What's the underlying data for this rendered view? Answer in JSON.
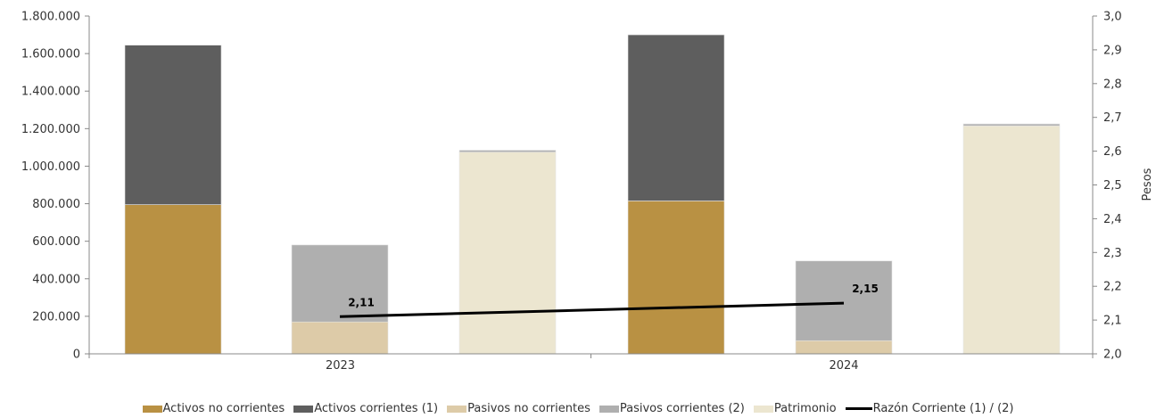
{
  "chart_data": {
    "type": "bar",
    "categories": [
      "2023",
      "2024"
    ],
    "left_axis": {
      "ylim": [
        0,
        1800000
      ],
      "ticks": [
        "0",
        "200.000",
        "400.000",
        "600.000",
        "800.000",
        "1.000.000",
        "1.200.000",
        "1.400.000",
        "1.600.000",
        "1.800.000"
      ]
    },
    "right_axis": {
      "label": "Pesos",
      "ylim": [
        2.0,
        3.0
      ],
      "ticks": [
        "2,0",
        "2,1",
        "2,2",
        "2,3",
        "2,4",
        "2,5",
        "2,6",
        "2,7",
        "2,8",
        "2,9",
        "3,0"
      ]
    },
    "grid": false,
    "legend_position": "bottom",
    "bar_groups": [
      {
        "category": "2023",
        "stacks": [
          [
            {
              "series": "Activos no corrientes",
              "value": 795000
            },
            {
              "series": "Activos corrientes (1)",
              "value": 850000
            }
          ],
          [
            {
              "series": "Pasivos no corrientes",
              "value": 170000
            },
            {
              "series": "Pasivos corrientes (2)",
              "value": 410000
            }
          ],
          [
            {
              "series": "Patrimonio",
              "value": 1075000
            },
            {
              "series": "Pasivos corrientes (2)",
              "value": 10000
            }
          ]
        ]
      },
      {
        "category": "2024",
        "stacks": [
          [
            {
              "series": "Activos no corrientes",
              "value": 815000
            },
            {
              "series": "Activos corrientes (1)",
              "value": 885000
            }
          ],
          [
            {
              "series": "Pasivos no corrientes",
              "value": 70000
            },
            {
              "series": "Pasivos corrientes (2)",
              "value": 425000
            }
          ],
          [
            {
              "series": "Patrimonio",
              "value": 1215000
            },
            {
              "series": "Pasivos corrientes (2)",
              "value": 10000
            }
          ]
        ]
      }
    ],
    "line": {
      "name": "Razón Corriente (1) / (2)",
      "values": [
        2.11,
        2.15
      ],
      "labels": [
        "2,11",
        "2,15"
      ]
    },
    "legend": [
      {
        "name": "Activos no corrientes",
        "color": "#B99143"
      },
      {
        "name": "Activos corrientes (1)",
        "color": "#5E5E5E"
      },
      {
        "name": "Pasivos no corrientes",
        "color": "#DDCBA8"
      },
      {
        "name": "Pasivos corrientes (2)",
        "color": "#AFAFAF"
      },
      {
        "name": "Patrimonio",
        "color": "#ECE6D0"
      },
      {
        "name": "Razón Corriente (1) / (2)",
        "color": "#000000",
        "kind": "line"
      }
    ]
  }
}
